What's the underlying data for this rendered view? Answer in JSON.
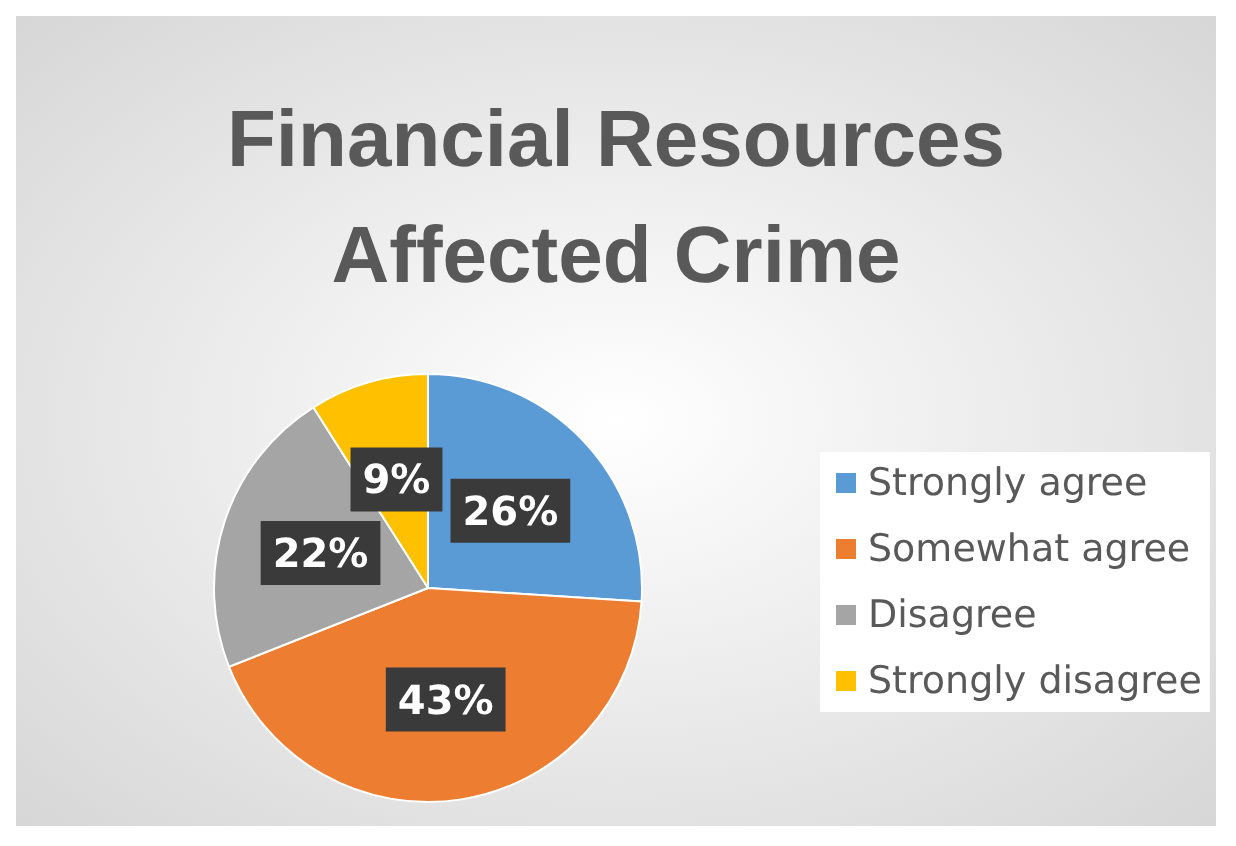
{
  "chart_data": {
    "type": "pie",
    "title": "Financial Resources\nAffected Crime",
    "categories": [
      "Strongly agree",
      "Somewhat agree",
      "Disagree",
      "Strongly disagree"
    ],
    "values": [
      26,
      43,
      22,
      9
    ],
    "colors": [
      "#5b9bd5",
      "#ed7d31",
      "#a5a5a5",
      "#ffc000"
    ],
    "value_labels": [
      "26%",
      "43%",
      "22%",
      "9%"
    ],
    "legend": "right"
  }
}
